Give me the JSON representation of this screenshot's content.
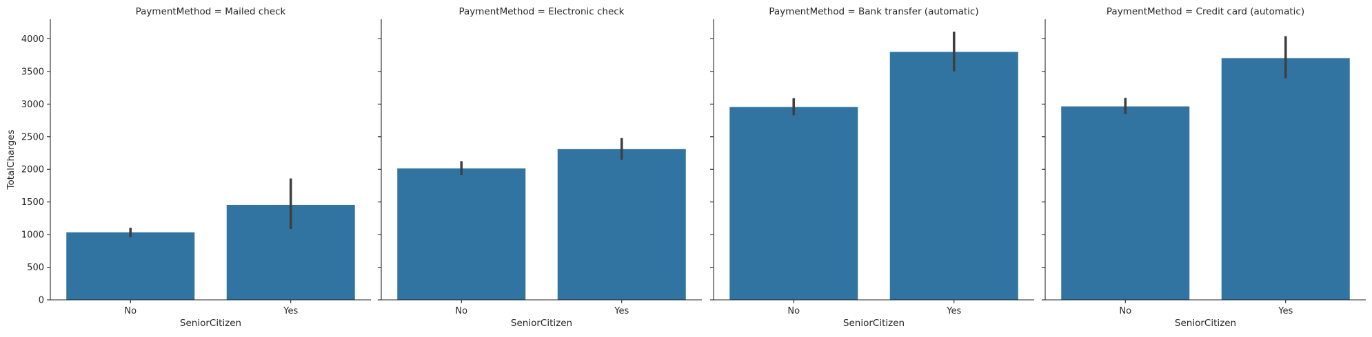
{
  "chart_data": [
    {
      "type": "bar",
      "title": "PaymentMethod = Mailed check",
      "xlabel": "SeniorCitizen",
      "ylabel": "TotalCharges",
      "categories": [
        "No",
        "Yes"
      ],
      "values": [
        1035,
        1455
      ],
      "error_low": [
        960,
        1085
      ],
      "error_high": [
        1105,
        1860
      ],
      "ylim": [
        0,
        4300
      ],
      "yticks": [
        0,
        500,
        1000,
        1500,
        2000,
        2500,
        3000,
        3500,
        4000
      ],
      "color": "#3274a1"
    },
    {
      "type": "bar",
      "title": "PaymentMethod = Electronic check",
      "xlabel": "SeniorCitizen",
      "ylabel": "",
      "categories": [
        "No",
        "Yes"
      ],
      "values": [
        2015,
        2310
      ],
      "error_low": [
        1915,
        2145
      ],
      "error_high": [
        2125,
        2480
      ],
      "ylim": [
        0,
        4300
      ],
      "yticks": [
        0,
        500,
        1000,
        1500,
        2000,
        2500,
        3000,
        3500,
        4000
      ],
      "color": "#3274a1"
    },
    {
      "type": "bar",
      "title": "PaymentMethod = Bank transfer (automatic)",
      "xlabel": "SeniorCitizen",
      "ylabel": "",
      "categories": [
        "No",
        "Yes"
      ],
      "values": [
        2955,
        3800
      ],
      "error_low": [
        2830,
        3500
      ],
      "error_high": [
        3090,
        4110
      ],
      "ylim": [
        0,
        4300
      ],
      "yticks": [
        0,
        500,
        1000,
        1500,
        2000,
        2500,
        3000,
        3500,
        4000
      ],
      "color": "#3274a1"
    },
    {
      "type": "bar",
      "title": "PaymentMethod = Credit card (automatic)",
      "xlabel": "SeniorCitizen",
      "ylabel": "",
      "categories": [
        "No",
        "Yes"
      ],
      "values": [
        2965,
        3705
      ],
      "error_low": [
        2845,
        3395
      ],
      "error_high": [
        3095,
        4040
      ],
      "ylim": [
        0,
        4300
      ],
      "yticks": [
        0,
        500,
        1000,
        1500,
        2000,
        2500,
        3000,
        3500,
        4000
      ],
      "color": "#3274a1"
    }
  ]
}
